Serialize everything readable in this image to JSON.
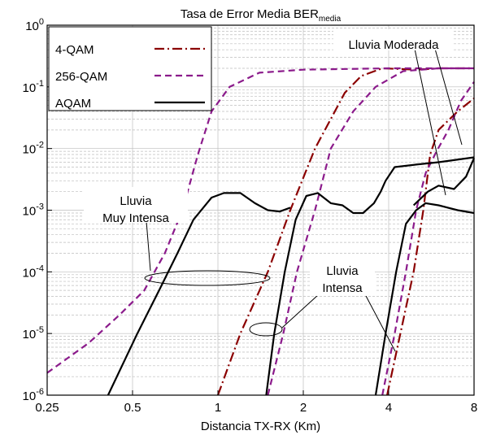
{
  "chart_data": {
    "type": "line",
    "title_main": "Tasa de Error Media BER",
    "title_sub": "media",
    "xlabel": "Distancia TX-RX (Km)",
    "ylabel": "",
    "x_scale": "log",
    "y_scale": "log",
    "xlim": [
      0.25,
      8
    ],
    "ylim": [
      1e-06,
      1
    ],
    "x_ticks": [
      {
        "value": 0.25,
        "label": "0.25"
      },
      {
        "value": 0.5,
        "label": "0.5"
      },
      {
        "value": 1,
        "label": "1"
      },
      {
        "value": 2,
        "label": "2"
      },
      {
        "value": 4,
        "label": "4"
      },
      {
        "value": 8,
        "label": "8"
      }
    ],
    "y_ticks": [
      {
        "value": 1,
        "base": "10",
        "exp": "0"
      },
      {
        "value": 0.1,
        "base": "10",
        "exp": "-1"
      },
      {
        "value": 0.01,
        "base": "10",
        "exp": "-2"
      },
      {
        "value": 0.001,
        "base": "10",
        "exp": "-3"
      },
      {
        "value": 0.0001,
        "base": "10",
        "exp": "-4"
      },
      {
        "value": 1e-05,
        "base": "10",
        "exp": "-5"
      },
      {
        "value": 1e-06,
        "base": "10",
        "exp": "-6"
      }
    ],
    "grid": true,
    "legend_position": "top-left",
    "legend": [
      {
        "label": "4-QAM",
        "color": "#8b0000",
        "dash": "dashdot"
      },
      {
        "label": "256-QAM",
        "color": "#8b1a8b",
        "dash": "dashed"
      },
      {
        "label": "AQAM",
        "color": "#000000",
        "dash": "solid"
      }
    ],
    "series": [
      {
        "group": "4-QAM",
        "color": "#8b0000",
        "dash": "dashdot",
        "points": [
          [
            1.0,
            1e-06
          ],
          [
            1.2,
            1e-05
          ],
          [
            1.5,
            0.0001
          ],
          [
            1.8,
            0.001
          ],
          [
            2.2,
            0.01
          ],
          [
            2.8,
            0.08
          ],
          [
            3.2,
            0.15
          ],
          [
            3.8,
            0.2
          ],
          [
            5,
            0.19
          ],
          [
            6,
            0.2
          ],
          [
            8,
            0.2
          ]
        ]
      },
      {
        "group": "4-QAM",
        "color": "#8b0000",
        "dash": "dashdot",
        "points": [
          [
            3.95,
            1e-06
          ],
          [
            4.4,
            1e-05
          ],
          [
            4.9,
            0.0001
          ],
          [
            5.3,
            0.001
          ],
          [
            5.6,
            0.008
          ],
          [
            6.0,
            0.02
          ],
          [
            7.0,
            0.04
          ],
          [
            8,
            0.065
          ]
        ]
      },
      {
        "group": "256-QAM",
        "color": "#8b1a8b",
        "dash": "dashed",
        "points": [
          [
            0.25,
            2.3e-06
          ],
          [
            0.35,
            7e-06
          ],
          [
            0.45,
            2e-05
          ],
          [
            0.55,
            5e-05
          ],
          [
            0.65,
            0.0002
          ],
          [
            0.75,
            0.001
          ],
          [
            0.85,
            0.008
          ],
          [
            0.95,
            0.04
          ],
          [
            1.1,
            0.1
          ],
          [
            1.4,
            0.17
          ],
          [
            2,
            0.19
          ],
          [
            4,
            0.2
          ],
          [
            8,
            0.2
          ]
        ]
      },
      {
        "group": "256-QAM",
        "color": "#8b1a8b",
        "dash": "dashed",
        "points": [
          [
            1.5,
            1e-06
          ],
          [
            1.7,
            1e-05
          ],
          [
            1.9,
            0.0001
          ],
          [
            2.2,
            0.001
          ],
          [
            2.5,
            0.01
          ],
          [
            3.0,
            0.04
          ],
          [
            3.6,
            0.1
          ],
          [
            4.5,
            0.18
          ],
          [
            6,
            0.2
          ],
          [
            8,
            0.2
          ]
        ]
      },
      {
        "group": "256-QAM",
        "color": "#8b1a8b",
        "dash": "dashed",
        "points": [
          [
            3.8,
            1e-06
          ],
          [
            4.2,
            1e-05
          ],
          [
            4.6,
            0.0001
          ],
          [
            5.0,
            0.001
          ],
          [
            5.4,
            0.004
          ],
          [
            5.9,
            0.009
          ],
          [
            6.5,
            0.02
          ],
          [
            7.2,
            0.06
          ],
          [
            8,
            0.12
          ]
        ]
      },
      {
        "group": "AQAM",
        "color": "#000000",
        "dash": "solid",
        "points": [
          [
            0.41,
            1e-06
          ],
          [
            0.52,
            1e-05
          ],
          [
            0.62,
            5e-05
          ],
          [
            0.72,
            0.0002
          ],
          [
            0.82,
            0.0007
          ],
          [
            0.95,
            0.0016
          ],
          [
            1.05,
            0.0019
          ],
          [
            1.2,
            0.0019
          ],
          [
            1.35,
            0.0013
          ],
          [
            1.5,
            0.001
          ],
          [
            1.65,
            0.00095
          ],
          [
            1.8,
            0.0011
          ]
        ]
      },
      {
        "group": "AQAM",
        "color": "#000000",
        "dash": "solid",
        "points": [
          [
            1.48,
            1e-06
          ],
          [
            1.58,
            1e-05
          ],
          [
            1.72,
            0.0001
          ],
          [
            1.88,
            0.0007
          ],
          [
            2.05,
            0.0017
          ],
          [
            2.25,
            0.0019
          ],
          [
            2.5,
            0.0013
          ],
          [
            2.75,
            0.0012
          ],
          [
            3.0,
            0.0009
          ],
          [
            3.25,
            0.0009
          ],
          [
            3.55,
            0.0013
          ],
          [
            3.75,
            0.002
          ],
          [
            3.9,
            0.003
          ],
          [
            4.2,
            0.005
          ],
          [
            5,
            0.0055
          ],
          [
            6,
            0.006
          ],
          [
            8,
            0.0072
          ]
        ]
      },
      {
        "group": "AQAM",
        "color": "#000000",
        "dash": "solid",
        "points": [
          [
            3.6,
            1e-06
          ],
          [
            3.9,
            1e-05
          ],
          [
            4.25,
            0.0001
          ],
          [
            4.6,
            0.0006
          ],
          [
            5.0,
            0.001
          ],
          [
            5.4,
            0.0013
          ],
          [
            6.0,
            0.0012
          ],
          [
            7.0,
            0.001
          ],
          [
            8,
            0.0009
          ]
        ]
      },
      {
        "group": "AQAM",
        "color": "#000000",
        "dash": "solid",
        "points": [
          [
            4.9,
            0.0012
          ],
          [
            5.5,
            0.002
          ],
          [
            6.0,
            0.0025
          ],
          [
            6.8,
            0.0022
          ],
          [
            7.5,
            0.0035
          ],
          [
            8,
            0.007
          ]
        ]
      }
    ],
    "annotations": [
      {
        "lines": [
          "Lluvia",
          "Muy Intensa"
        ]
      },
      {
        "lines": [
          "Lluvia",
          "Intensa"
        ]
      },
      {
        "lines": [
          "Lluvia Moderada"
        ]
      }
    ]
  }
}
